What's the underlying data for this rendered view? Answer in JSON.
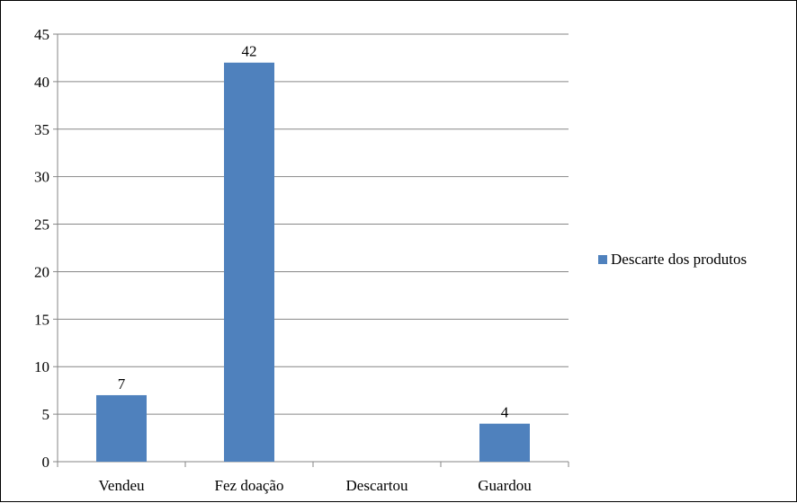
{
  "chart_data": {
    "type": "bar",
    "title": "",
    "xlabel": "",
    "ylabel": "",
    "categories": [
      "Vendeu",
      "Fez doação",
      "Descartou",
      "Guardou"
    ],
    "series": [
      {
        "name": "Descarte dos produtos",
        "values": [
          7,
          42,
          0,
          4
        ],
        "data_labels": [
          "7",
          "42",
          "",
          "4"
        ],
        "color": "#4f81bd"
      }
    ],
    "ylim": [
      0,
      45
    ],
    "yticks": [
      0,
      5,
      10,
      15,
      20,
      25,
      30,
      35,
      40,
      45
    ],
    "grid": true,
    "legend": "right"
  }
}
